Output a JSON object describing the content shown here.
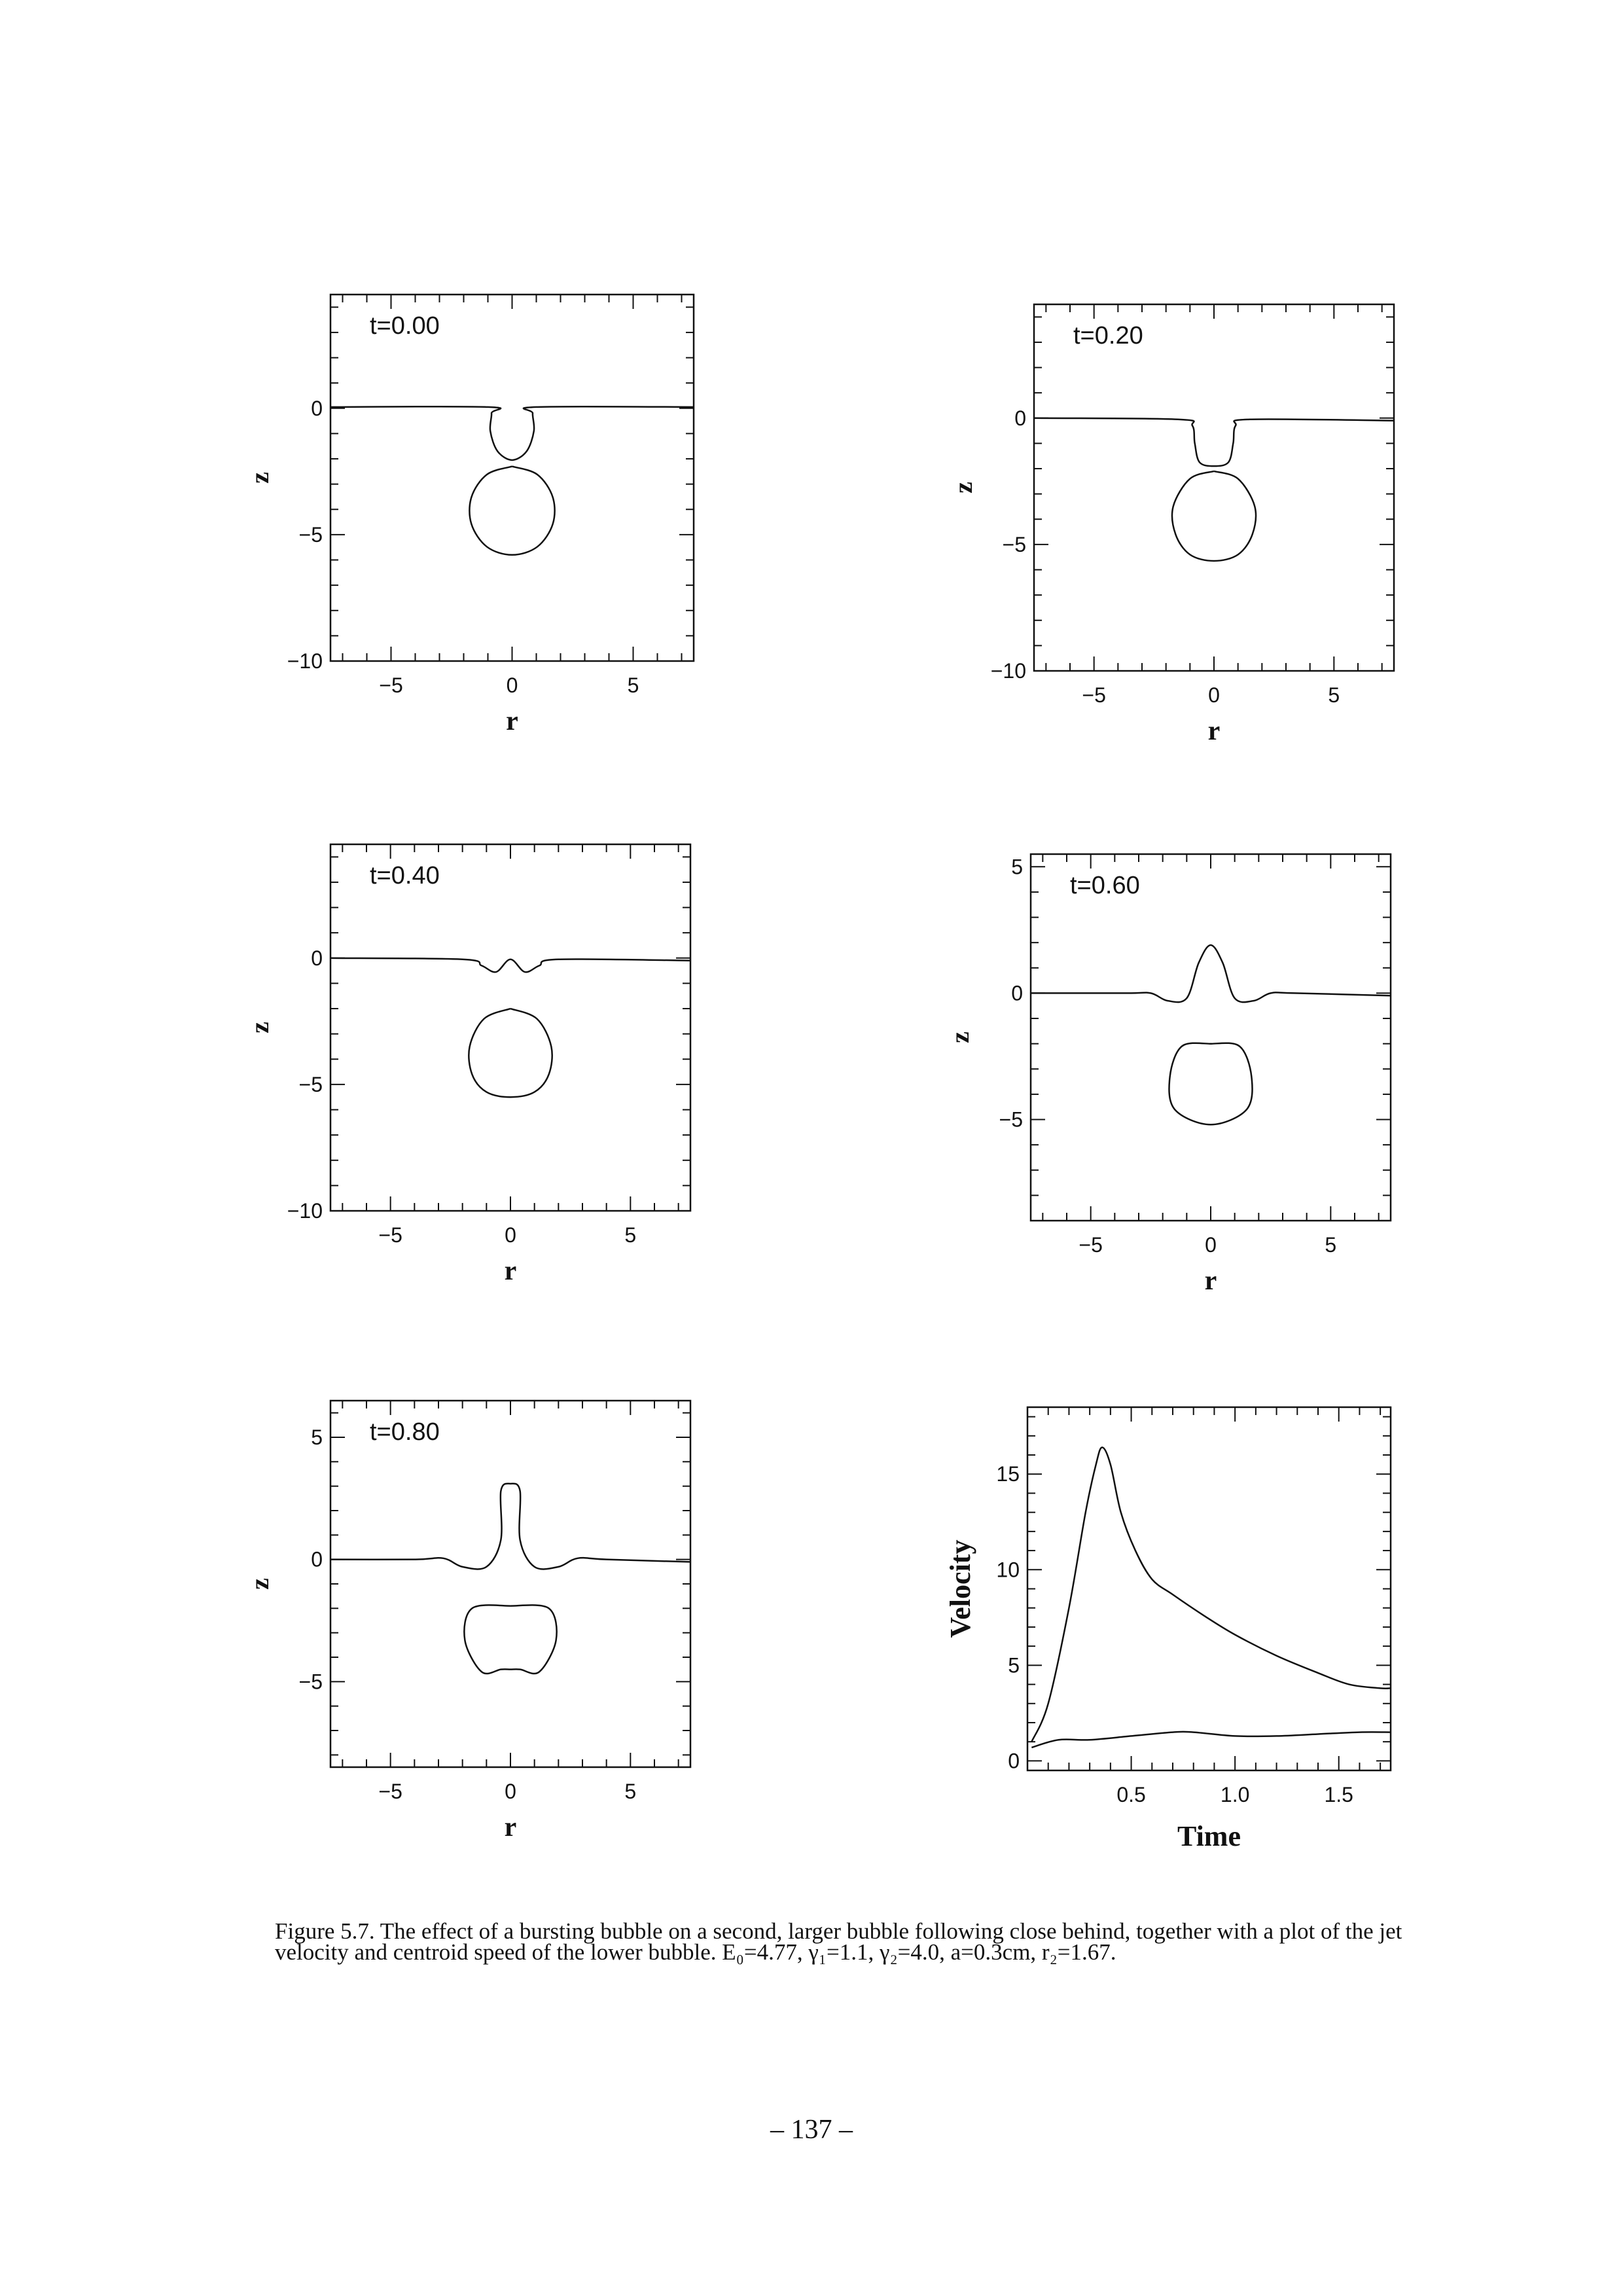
{
  "chart_data": [
    {
      "type": "line",
      "title": "t=0.00",
      "xlabel": "r",
      "ylabel": "z",
      "xlim": [
        -7.5,
        7.5
      ],
      "ylim": [
        -10,
        4.5
      ],
      "xticks": [
        "-5",
        "0",
        "5"
      ],
      "yticks": [
        "0",
        "-5",
        "-10"
      ],
      "series": [
        {
          "points": [
            [
              -7.5,
              0.05
            ],
            [
              -1,
              0.05
            ],
            [
              -0.85,
              -0.2
            ],
            [
              -0.9,
              -0.9
            ],
            [
              -0.6,
              -1.7
            ],
            [
              0,
              -2.05
            ],
            [
              0.6,
              -1.7
            ],
            [
              0.9,
              -0.9
            ],
            [
              0.85,
              -0.2
            ],
            [
              1,
              0.05
            ],
            [
              7.5,
              0.05
            ]
          ]
        },
        {
          "points": [
            [
              0,
              -2.3
            ],
            [
              1.04,
              -2.62
            ],
            [
              1.68,
              -3.52
            ],
            [
              1.68,
              -4.58
            ],
            [
              1.04,
              -5.48
            ],
            [
              0,
              -5.8
            ],
            [
              -1.04,
              -5.48
            ],
            [
              -1.68,
              -4.58
            ],
            [
              -1.68,
              -3.52
            ],
            [
              -1.04,
              -2.62
            ],
            [
              0,
              -2.3
            ]
          ]
        }
      ]
    },
    {
      "type": "line",
      "title": "t=0.20",
      "xlabel": "r",
      "ylabel": "z",
      "xlim": [
        -7.5,
        7.5
      ],
      "ylim": [
        -10,
        4.5
      ],
      "xticks": [
        "-5",
        "0",
        "5"
      ],
      "yticks": [
        "0",
        "-5",
        "-10"
      ],
      "series": [
        {
          "points": [
            [
              -7.5,
              0
            ],
            [
              -1.5,
              -0.05
            ],
            [
              -0.9,
              -0.3
            ],
            [
              -0.8,
              -1
            ],
            [
              -0.6,
              -1.75
            ],
            [
              0,
              -1.9
            ],
            [
              0.6,
              -1.75
            ],
            [
              0.8,
              -1
            ],
            [
              0.9,
              -0.3
            ],
            [
              1.5,
              -0.05
            ],
            [
              7.5,
              -0.1
            ]
          ]
        },
        {
          "points": [
            [
              0,
              -2.1
            ],
            [
              1,
              -2.4
            ],
            [
              1.7,
              -3.5
            ],
            [
              1.6,
              -4.6
            ],
            [
              1,
              -5.4
            ],
            [
              0,
              -5.65
            ],
            [
              -1,
              -5.4
            ],
            [
              -1.6,
              -4.6
            ],
            [
              -1.7,
              -3.5
            ],
            [
              -1,
              -2.4
            ],
            [
              0,
              -2.1
            ]
          ]
        }
      ]
    },
    {
      "type": "line",
      "title": "t=0.40",
      "xlabel": "r",
      "ylabel": "z",
      "xlim": [
        -7.5,
        7.5
      ],
      "ylim": [
        -10,
        4.5
      ],
      "xticks": [
        "-5",
        "0",
        "5"
      ],
      "yticks": [
        "0",
        "-5",
        "-10"
      ],
      "series": [
        {
          "points": [
            [
              -7.5,
              0
            ],
            [
              -2,
              -0.05
            ],
            [
              -1.2,
              -0.3
            ],
            [
              -0.6,
              -0.55
            ],
            [
              0,
              -0.05
            ],
            [
              0.6,
              -0.55
            ],
            [
              1.2,
              -0.3
            ],
            [
              2,
              -0.05
            ],
            [
              7.5,
              -0.1
            ]
          ]
        },
        {
          "points": [
            [
              0,
              -2
            ],
            [
              1.1,
              -2.4
            ],
            [
              1.7,
              -3.5
            ],
            [
              1.6,
              -4.6
            ],
            [
              1,
              -5.3
            ],
            [
              0,
              -5.5
            ],
            [
              -1,
              -5.3
            ],
            [
              -1.6,
              -4.6
            ],
            [
              -1.7,
              -3.5
            ],
            [
              -1.1,
              -2.4
            ],
            [
              0,
              -2
            ]
          ]
        }
      ]
    },
    {
      "type": "line",
      "title": "t=0.60",
      "xlabel": "r",
      "ylabel": "z",
      "xlim": [
        -7.5,
        7.5
      ],
      "ylim": [
        -9,
        5.5
      ],
      "xticks": [
        "-5",
        "0",
        "5"
      ],
      "yticks": [
        "5",
        "0",
        "-5"
      ],
      "series": [
        {
          "points": [
            [
              -7.5,
              0
            ],
            [
              -3.5,
              0
            ],
            [
              -2.5,
              0
            ],
            [
              -1.8,
              -0.3
            ],
            [
              -1,
              -0.2
            ],
            [
              -0.5,
              1.2
            ],
            [
              0,
              1.9
            ],
            [
              0.5,
              1.2
            ],
            [
              1,
              -0.2
            ],
            [
              1.8,
              -0.3
            ],
            [
              2.5,
              0
            ],
            [
              3.5,
              0
            ],
            [
              7.5,
              -0.1
            ]
          ]
        },
        {
          "points": [
            [
              0,
              -2
            ],
            [
              1.2,
              -2.1
            ],
            [
              1.7,
              -3.3
            ],
            [
              1.5,
              -4.6
            ],
            [
              0,
              -5.2
            ],
            [
              -1.5,
              -4.6
            ],
            [
              -1.7,
              -3.3
            ],
            [
              -1.2,
              -2.1
            ],
            [
              0,
              -2
            ]
          ]
        }
      ]
    },
    {
      "type": "line",
      "title": "t=0.80",
      "xlabel": "r",
      "ylabel": "z",
      "xlim": [
        -7.5,
        7.5
      ],
      "ylim": [
        -8.5,
        6.5
      ],
      "xticks": [
        "-5",
        "0",
        "5"
      ],
      "yticks": [
        "5",
        "0",
        "-5"
      ],
      "series": [
        {
          "points": [
            [
              -7.5,
              0
            ],
            [
              -4,
              0
            ],
            [
              -2.8,
              0.05
            ],
            [
              -2,
              -0.3
            ],
            [
              -1,
              -0.3
            ],
            [
              -0.4,
              0.8
            ],
            [
              -0.4,
              2.8
            ],
            [
              0,
              3.1
            ],
            [
              0.4,
              2.8
            ],
            [
              0.4,
              0.8
            ],
            [
              1,
              -0.3
            ],
            [
              2,
              -0.3
            ],
            [
              2.8,
              0.05
            ],
            [
              4,
              0
            ],
            [
              7.5,
              -0.1
            ]
          ]
        },
        {
          "points": [
            [
              0,
              -1.9
            ],
            [
              1.6,
              -2
            ],
            [
              1.9,
              -3.3
            ],
            [
              1.2,
              -4.6
            ],
            [
              0.4,
              -4.5
            ],
            [
              0,
              -4.5
            ],
            [
              -0.4,
              -4.5
            ],
            [
              -1.2,
              -4.6
            ],
            [
              -1.9,
              -3.3
            ],
            [
              -1.6,
              -2
            ],
            [
              0,
              -1.9
            ]
          ]
        }
      ]
    },
    {
      "type": "line",
      "title": "",
      "xlabel": "Time",
      "ylabel": "Velocity",
      "xlim": [
        0,
        1.75
      ],
      "ylim": [
        -0.5,
        18.5
      ],
      "xticks": [
        "0.5",
        "1.0",
        "1.5"
      ],
      "yticks": [
        "0",
        "5",
        "10",
        "15"
      ],
      "series": [
        {
          "points": [
            [
              0.02,
              1
            ],
            [
              0.1,
              3
            ],
            [
              0.2,
              8
            ],
            [
              0.28,
              13
            ],
            [
              0.33,
              15.5
            ],
            [
              0.36,
              16.4
            ],
            [
              0.4,
              15.5
            ],
            [
              0.45,
              13
            ],
            [
              0.52,
              11
            ],
            [
              0.6,
              9.5
            ],
            [
              0.7,
              8.7
            ],
            [
              0.85,
              7.6
            ],
            [
              1,
              6.6
            ],
            [
              1.2,
              5.5
            ],
            [
              1.4,
              4.6
            ],
            [
              1.55,
              4
            ],
            [
              1.7,
              3.8
            ],
            [
              1.75,
              3.8
            ]
          ]
        },
        {
          "points": [
            [
              0.02,
              0.7
            ],
            [
              0.15,
              1.1
            ],
            [
              0.3,
              1.1
            ],
            [
              0.5,
              1.3
            ],
            [
              0.7,
              1.5
            ],
            [
              0.8,
              1.5
            ],
            [
              1,
              1.3
            ],
            [
              1.2,
              1.3
            ],
            [
              1.4,
              1.4
            ],
            [
              1.6,
              1.5
            ],
            [
              1.75,
              1.5
            ]
          ]
        }
      ]
    }
  ],
  "caption": "Figure 5.7. The effect of a bursting bubble on a second, larger bubble following close behind, together with a plot of the jet velocity and centroid speed of the lower bubble. E₀=4.77, γ₁=1.1, γ₂=4.0, a=0.3cm, r₂=1.67.",
  "page_number": "– 137 –"
}
